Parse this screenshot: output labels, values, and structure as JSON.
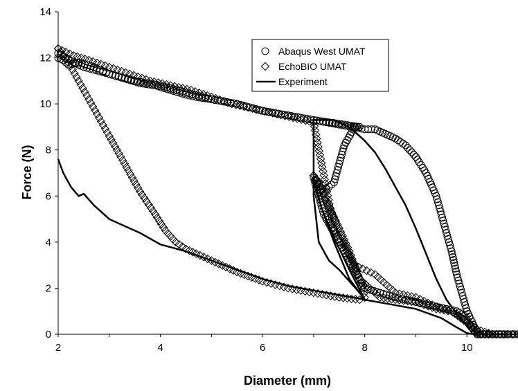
{
  "chart_data": {
    "type": "scatter",
    "xlabel": "Diameter (mm)",
    "ylabel": "Force (N)",
    "xlim": [
      2,
      11
    ],
    "ylim": [
      0,
      14
    ],
    "xticks": [
      "2",
      "4",
      "6",
      "8",
      "10"
    ],
    "yticks": [
      "0",
      "2",
      "4",
      "6",
      "8",
      "10",
      "12",
      "14"
    ],
    "grid": false,
    "legend_position": "top-right",
    "series": [
      {
        "name": "Abaqus West UMAT",
        "marker": "circle",
        "x": [
          2.0,
          2.1,
          2.2,
          2.4,
          2.7,
          3.0,
          3.3,
          3.6,
          3.9,
          4.2,
          4.5,
          4.7,
          5.0,
          5.5,
          6.0,
          6.5,
          7.0,
          7.3,
          7.6,
          7.9,
          7.8,
          7.6,
          7.4,
          7.2,
          7.1,
          7.0,
          7.05,
          7.2,
          7.5,
          8.0,
          8.3,
          8.6,
          8.8,
          9.0,
          9.2,
          9.4,
          9.6,
          9.8,
          9.95,
          10.05,
          10.2,
          10.5,
          10.8,
          11.0,
          10.8,
          10.5,
          10.25,
          10.15,
          10.0,
          9.9,
          9.8,
          9.7,
          9.55,
          9.4,
          9.2,
          9.0,
          8.8,
          8.6,
          8.4,
          8.2,
          8.0,
          7.5,
          7.0,
          6.5,
          6.0,
          5.5,
          5.0,
          4.5,
          4.0,
          3.5,
          3.0,
          2.5,
          2.3,
          2.0
        ],
        "y": [
          12.0,
          11.9,
          11.7,
          11.8,
          11.6,
          11.3,
          11.1,
          10.9,
          10.8,
          10.6,
          10.4,
          10.3,
          10.2,
          10.0,
          9.7,
          9.5,
          9.3,
          9.2,
          9.1,
          9.0,
          9.0,
          8.2,
          6.6,
          6.2,
          6.5,
          6.8,
          6.4,
          5.2,
          4.0,
          2.0,
          1.8,
          1.6,
          1.5,
          1.4,
          1.3,
          1.2,
          1.1,
          1.0,
          0.8,
          0.4,
          0.0,
          0.0,
          0.0,
          0.0,
          0.0,
          0.0,
          0.0,
          0.3,
          1.0,
          1.8,
          2.6,
          3.6,
          4.8,
          6.0,
          7.0,
          7.7,
          8.2,
          8.5,
          8.7,
          8.9,
          8.9,
          9.1,
          9.3,
          9.5,
          9.7,
          10.0,
          10.2,
          10.5,
          10.8,
          11.0,
          11.3,
          11.6,
          11.8,
          12.2
        ]
      },
      {
        "name": "EchoBIO UMAT",
        "marker": "diamond",
        "x": [
          2.0,
          2.2,
          2.4,
          2.6,
          2.8,
          3.0,
          3.3,
          3.6,
          3.9,
          4.1,
          4.3,
          4.5,
          4.7,
          5.0,
          5.5,
          6.0,
          6.5,
          7.0,
          7.5,
          7.9,
          8.0,
          7.9,
          7.7,
          7.5,
          7.3,
          7.15,
          7.05,
          7.0,
          7.1,
          7.3,
          7.6,
          7.9,
          8.3,
          8.6,
          9.0,
          9.4,
          9.7,
          10.0,
          10.2,
          10.5,
          10.8,
          11.0,
          10.8,
          10.5,
          10.2,
          9.8,
          9.4,
          9.0,
          8.6,
          8.2,
          7.8,
          7.4,
          7.0,
          6.6,
          6.2,
          5.8,
          5.4,
          5.0,
          4.6,
          4.2,
          3.8,
          3.4,
          3.0,
          2.6,
          2.3,
          2.0
        ],
        "y": [
          12.4,
          11.8,
          11.0,
          10.2,
          9.4,
          8.6,
          7.4,
          6.2,
          5.2,
          4.5,
          4.0,
          3.7,
          3.5,
          3.2,
          2.7,
          2.3,
          2.0,
          1.8,
          1.6,
          1.5,
          1.6,
          2.4,
          3.6,
          4.6,
          5.5,
          6.2,
          6.7,
          6.9,
          6.6,
          5.6,
          4.0,
          2.4,
          1.6,
          1.5,
          1.4,
          1.1,
          1.0,
          0.5,
          0.0,
          0.0,
          0.0,
          0.0,
          0.0,
          0.0,
          0.2,
          0.9,
          1.2,
          1.6,
          1.8,
          2.6,
          3.0,
          4.6,
          9.2,
          9.4,
          9.6,
          9.8,
          10.0,
          10.3,
          10.6,
          10.8,
          11.0,
          11.3,
          11.6,
          11.9,
          12.1,
          12.4
        ]
      },
      {
        "name": "Experiment",
        "marker": "line",
        "x": [
          2.0,
          2.1,
          2.25,
          2.4,
          2.5,
          2.7,
          3.0,
          3.3,
          3.6,
          4.0,
          4.5,
          5.0,
          5.5,
          6.0,
          6.5,
          7.0,
          7.5,
          7.9,
          8.0,
          7.7,
          7.4,
          7.2,
          7.05,
          7.0,
          7.05,
          7.15,
          7.4,
          7.7,
          8.0,
          8.5,
          9.0,
          9.5,
          9.8,
          10.0,
          10.15,
          10.5,
          11.0,
          10.6,
          10.2,
          9.9,
          9.6,
          9.4,
          9.2,
          9.0,
          8.8,
          8.6,
          8.4,
          8.2,
          8.0,
          7.8,
          7.6,
          7.4,
          7.2,
          7.1,
          7.05,
          7.0,
          7.0,
          7.0,
          7.1,
          7.3,
          7.5,
          7.7,
          7.9,
          8.0
        ],
        "y": [
          7.6,
          7.0,
          6.4,
          6.0,
          6.1,
          5.6,
          5.0,
          4.7,
          4.4,
          3.9,
          3.6,
          3.2,
          2.8,
          2.4,
          2.1,
          1.9,
          1.7,
          1.55,
          1.5,
          2.4,
          4.0,
          5.2,
          6.2,
          6.8,
          6.4,
          5.5,
          4.2,
          2.8,
          1.5,
          1.3,
          1.1,
          0.7,
          0.3,
          0.05,
          0.0,
          0.0,
          0.0,
          0.0,
          0.0,
          0.6,
          1.5,
          2.4,
          3.5,
          4.6,
          5.6,
          6.4,
          7.2,
          7.9,
          8.4,
          8.8,
          9.1,
          9.3,
          9.3,
          9.3,
          9.3,
          9.3,
          8.4,
          6.0,
          4.0,
          3.2,
          2.8,
          2.3,
          1.8,
          1.5
        ]
      }
    ]
  }
}
